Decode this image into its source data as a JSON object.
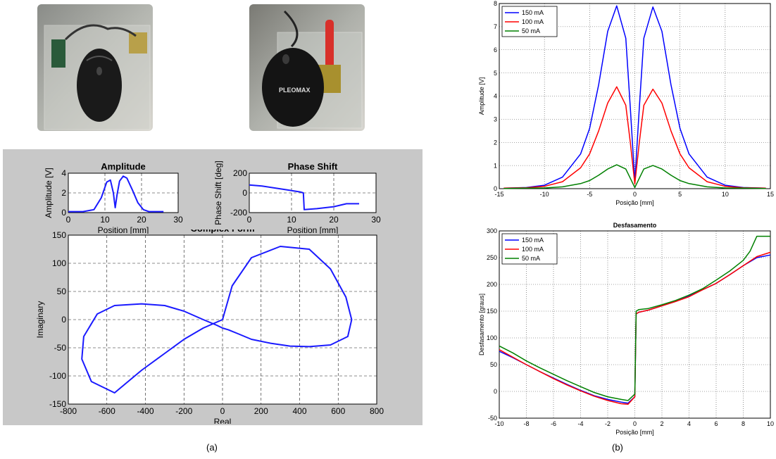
{
  "captions": {
    "left": "(a)",
    "right": "(b)"
  },
  "photos": {
    "left": {
      "label": "",
      "accent": "#1f1f1f"
    },
    "right": {
      "label": "PLEOMAX",
      "accent": "#1f1f1f"
    }
  },
  "colors": {
    "blue": "#0000ff",
    "red": "#ff0000",
    "green": "#008000",
    "lineblue": "#1a1aff"
  },
  "chart_data": [
    {
      "id": "a-amplitude",
      "type": "line",
      "title": "Amplitude",
      "xlabel": "Position [mm]",
      "ylabel": "Amplitude [V]",
      "xlim": [
        0,
        30
      ],
      "ylim": [
        0,
        4
      ],
      "xticks": [
        "0",
        "10",
        "20",
        "30"
      ],
      "yticks": [
        "0",
        "2",
        "4"
      ],
      "grid": true,
      "series": [
        {
          "x": [
            0,
            4,
            7,
            9,
            10.5,
            11.5,
            12.3,
            12.8,
            13.3,
            14,
            15,
            16,
            17.5,
            19,
            20.5,
            22,
            26
          ],
          "y": [
            0.1,
            0.1,
            0.3,
            1.5,
            3.1,
            3.3,
            2.0,
            0.5,
            1.8,
            3.2,
            3.7,
            3.5,
            2.3,
            1.0,
            0.3,
            0.1,
            0.1
          ]
        }
      ]
    },
    {
      "id": "a-phase",
      "type": "line",
      "title": "Phase Shift",
      "xlabel": "Position [mm]",
      "ylabel": "Phase Shift [deg]",
      "xlim": [
        0,
        30
      ],
      "ylim": [
        -200,
        200
      ],
      "xticks": [
        "0",
        "10",
        "20",
        "30"
      ],
      "yticks": [
        "-200",
        "0",
        "200"
      ],
      "grid": true,
      "series": [
        {
          "x": [
            0,
            3,
            6,
            9,
            12,
            12.8,
            13.0,
            16,
            20,
            23,
            26
          ],
          "y": [
            80,
            70,
            50,
            30,
            10,
            0,
            -170,
            -160,
            -140,
            -110,
            -110
          ]
        }
      ]
    },
    {
      "id": "a-complex",
      "type": "line",
      "title": "Complex Form",
      "xlabel": "Real",
      "ylabel": "Imaginary",
      "xlim": [
        -800,
        800
      ],
      "ylim": [
        -150,
        150
      ],
      "xticks": [
        "-800",
        "-600",
        "-400",
        "-200",
        "0",
        "200",
        "400",
        "600",
        "800"
      ],
      "yticks": [
        "-150",
        "-100",
        "-50",
        "0",
        "50",
        "100",
        "150"
      ],
      "grid": true,
      "series": [
        {
          "x": [
            0,
            -100,
            -200,
            -300,
            -420,
            -560,
            -680,
            -730,
            -720,
            -650,
            -560,
            -420,
            -300,
            -200,
            -100,
            -30,
            0,
            30,
            80,
            150,
            250,
            350,
            450,
            560,
            650,
            670,
            640,
            560,
            450,
            300,
            150,
            50,
            0
          ],
          "y": [
            0,
            -15,
            -35,
            -60,
            -90,
            -130,
            -110,
            -70,
            -30,
            10,
            25,
            28,
            25,
            15,
            0,
            -10,
            -15,
            -18,
            -25,
            -35,
            -42,
            -47,
            -48,
            -45,
            -30,
            0,
            40,
            90,
            125,
            130,
            110,
            60,
            0
          ]
        }
      ]
    },
    {
      "id": "b-amplitude",
      "type": "line",
      "title": "",
      "xlabel": "Posição [mm]",
      "ylabel": "Amplitude [V]",
      "xlim": [
        -15,
        15
      ],
      "ylim": [
        0,
        8
      ],
      "xticks": [
        "-15",
        "-10",
        "-5",
        "0",
        "5",
        "10",
        "15"
      ],
      "yticks": [
        "0",
        "1",
        "2",
        "3",
        "4",
        "5",
        "6",
        "7",
        "8"
      ],
      "grid": true,
      "legend": "top-left",
      "series": [
        {
          "name": "150 mA",
          "color": "#0000ff",
          "x": [
            -14.5,
            -12,
            -10,
            -8,
            -6,
            -5,
            -4,
            -3,
            -2,
            -1,
            -0.5,
            0,
            0.5,
            1,
            2,
            3,
            4,
            5,
            6,
            8,
            10,
            12,
            14.5
          ],
          "y": [
            0.02,
            0.05,
            0.15,
            0.5,
            1.5,
            2.6,
            4.5,
            6.8,
            7.9,
            6.5,
            3.5,
            0.3,
            3.5,
            6.5,
            7.85,
            6.8,
            4.5,
            2.6,
            1.5,
            0.5,
            0.15,
            0.05,
            0.02
          ]
        },
        {
          "name": "100 mA",
          "color": "#ff0000",
          "x": [
            -14.5,
            -12,
            -10,
            -8,
            -6,
            -5,
            -4,
            -3,
            -2,
            -1,
            -0.5,
            0,
            0.5,
            1,
            2,
            3,
            4,
            5,
            6,
            8,
            10,
            12,
            14.5
          ],
          "y": [
            0.02,
            0.04,
            0.1,
            0.3,
            0.9,
            1.5,
            2.5,
            3.7,
            4.4,
            3.6,
            2.0,
            0.2,
            2.0,
            3.6,
            4.3,
            3.7,
            2.5,
            1.5,
            0.9,
            0.3,
            0.1,
            0.04,
            0.02
          ]
        },
        {
          "name": "50 mA",
          "color": "#008000",
          "x": [
            -14.5,
            -12,
            -10,
            -8,
            -6,
            -5,
            -4,
            -3,
            -2,
            -1,
            -0.5,
            0,
            0.5,
            1,
            2,
            3,
            4,
            5,
            6,
            8,
            10,
            12,
            14.5
          ],
          "y": [
            0.01,
            0.02,
            0.03,
            0.08,
            0.22,
            0.35,
            0.58,
            0.85,
            1.03,
            0.85,
            0.45,
            0.05,
            0.45,
            0.85,
            1.0,
            0.85,
            0.58,
            0.35,
            0.22,
            0.08,
            0.03,
            0.02,
            0.01
          ]
        }
      ]
    },
    {
      "id": "b-phase",
      "type": "line",
      "title": "Desfasamento",
      "xlabel": "Posição [mm]",
      "ylabel": "Desfasamento [graus]",
      "xlim": [
        -10,
        10
      ],
      "ylim": [
        -50,
        300
      ],
      "xticks": [
        "-10",
        "-8",
        "-6",
        "-4",
        "-2",
        "0",
        "2",
        "4",
        "6",
        "8",
        "10"
      ],
      "yticks": [
        "-50",
        "0",
        "50",
        "100",
        "150",
        "200",
        "250",
        "300"
      ],
      "grid": true,
      "legend": "top-left",
      "series": [
        {
          "name": "150 mA",
          "color": "#0000ff",
          "x": [
            -10,
            -9,
            -8,
            -7,
            -6,
            -5,
            -4,
            -3,
            -2,
            -1,
            -0.5,
            0,
            0.1,
            0.3,
            1,
            2,
            3,
            4,
            5,
            6,
            7,
            8,
            9,
            10
          ],
          "y": [
            75,
            63,
            50,
            37,
            25,
            13,
            2,
            -8,
            -15,
            -20,
            -22,
            -10,
            145,
            148,
            152,
            160,
            168,
            178,
            190,
            202,
            218,
            235,
            250,
            255
          ]
        },
        {
          "name": "100 mA",
          "color": "#ff0000",
          "x": [
            -10,
            -9,
            -8,
            -7,
            -6,
            -5,
            -4,
            -3,
            -2,
            -1,
            -0.5,
            0,
            0.1,
            0.3,
            1,
            2,
            3,
            4,
            5,
            6,
            7,
            8,
            9,
            10
          ],
          "y": [
            78,
            64,
            50,
            37,
            24,
            12,
            1,
            -9,
            -17,
            -23,
            -24,
            -10,
            145,
            148,
            152,
            160,
            168,
            177,
            190,
            202,
            218,
            235,
            252,
            260
          ]
        },
        {
          "name": "50 mA",
          "color": "#008000",
          "x": [
            -10,
            -9,
            -8,
            -7,
            -6,
            -5,
            -4,
            -3,
            -2,
            -1,
            -0.5,
            0,
            0.1,
            0.3,
            1,
            2,
            3,
            4,
            5,
            6,
            7,
            8,
            8.5,
            9,
            10
          ],
          "y": [
            85,
            72,
            57,
            44,
            32,
            20,
            9,
            -2,
            -10,
            -15,
            -17,
            -5,
            150,
            153,
            155,
            162,
            170,
            180,
            192,
            208,
            225,
            245,
            262,
            290,
            290
          ]
        }
      ]
    }
  ]
}
